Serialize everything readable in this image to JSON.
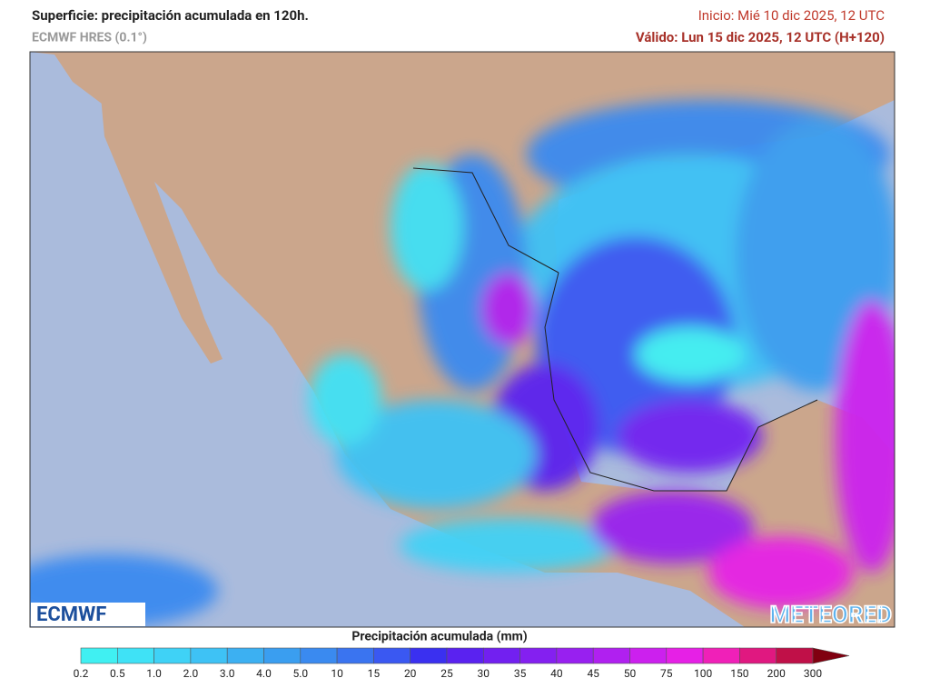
{
  "header": {
    "title": "Superficie: precipitación acumulada en 120h.",
    "model": "ECMWF HRES (0.1°)",
    "init": "Inicio: Mié 10 dic 2025, 12 UTC",
    "valid": "Válido: Lun 15 dic 2025, 12 UTC (H+120)"
  },
  "logos": {
    "left": "ECMWF",
    "right": "METEORED"
  },
  "legend": {
    "title": "Precipitación acumulada (mm)",
    "labels": [
      "0.2",
      "0.5",
      "1.0",
      "2.0",
      "3.0",
      "4.0",
      "5.0",
      "10",
      "15",
      "20",
      "25",
      "30",
      "35",
      "40",
      "45",
      "50",
      "75",
      "100",
      "150",
      "200",
      "300"
    ],
    "colors": [
      "#40f0f2",
      "#3fe2f6",
      "#3fd2f6",
      "#3ec2f5",
      "#3cb0f2",
      "#3a9ef0",
      "#3a8af0",
      "#3a74f0",
      "#3a58f2",
      "#3a30f0",
      "#5a22f0",
      "#7220f0",
      "#8420f0",
      "#9820f0",
      "#b020f0",
      "#cc20ee",
      "#e620e6",
      "#f020b8",
      "#e01880",
      "#c01048",
      "#800010"
    ]
  }
}
